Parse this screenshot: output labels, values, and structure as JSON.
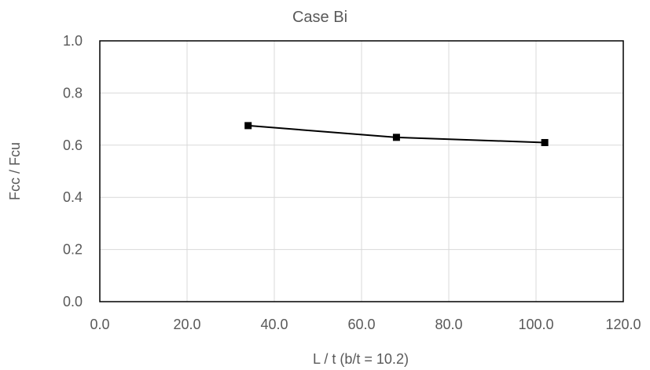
{
  "chart_data": {
    "type": "line",
    "title": "Case Bi",
    "xlabel": "L / t (b/t = 10.2)",
    "ylabel": "Fcc / Fcu",
    "xlim": [
      0,
      120
    ],
    "ylim": [
      0,
      1
    ],
    "x_ticks": [
      "0.0",
      "20.0",
      "40.0",
      "60.0",
      "80.0",
      "100.0",
      "120.0"
    ],
    "y_ticks": [
      "0.0",
      "0.2",
      "0.4",
      "0.6",
      "0.8",
      "1.0"
    ],
    "grid": true,
    "legend": "none",
    "series": [
      {
        "x": [
          34,
          68,
          102
        ],
        "y": [
          0.675,
          0.63,
          0.61
        ],
        "color": "#000000",
        "marker": "square"
      }
    ]
  }
}
